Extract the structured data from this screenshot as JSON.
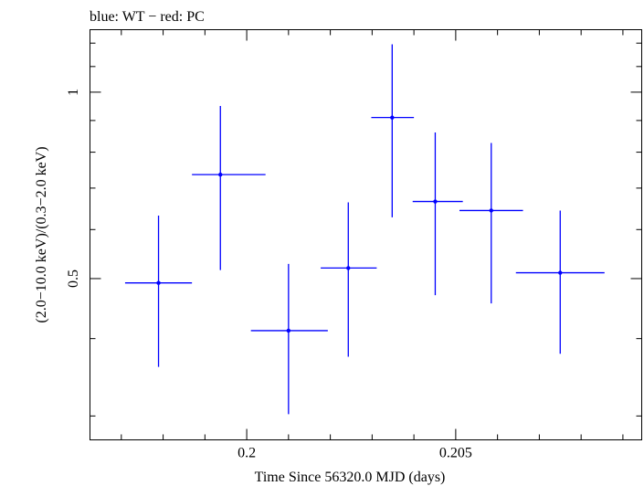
{
  "chart_data": {
    "type": "scatter",
    "title": "blue: WT − red: PC",
    "xlabel": "Time Since 56320.0 MJD (days)",
    "ylabel": "(2.0−10.0 keV)/(0.3−2.0 keV)",
    "xlim": [
      0.19625,
      0.20945
    ],
    "ylim": [
      0.2745,
      1.2615
    ],
    "y_scale": "log",
    "x_ticks": [
      {
        "value": 0.2,
        "label": "0.2"
      },
      {
        "value": 0.205,
        "label": "0.205"
      }
    ],
    "y_ticks": [
      {
        "value": 0.5,
        "label": "0.5"
      },
      {
        "value": 1.0,
        "label": "1"
      }
    ],
    "x_minor_step": 0.001,
    "y_minor_ticks": [
      0.3,
      0.4,
      0.6,
      0.7,
      0.8,
      0.9,
      1.1,
      1.2
    ],
    "grid": false,
    "series": [
      {
        "name": "WT",
        "color": "#0000ff",
        "points": [
          {
            "x": 0.19789,
            "xerr": [
              0.0008,
              0.0008
            ],
            "y": 0.492,
            "yerr": [
              0.132,
              0.14
            ]
          },
          {
            "x": 0.19937,
            "xerr": [
              0.00068,
              0.00108
            ],
            "y": 0.736,
            "yerr": [
              0.22,
              0.214
            ]
          },
          {
            "x": 0.201,
            "xerr": [
              0.0009,
              0.00094
            ],
            "y": 0.412,
            "yerr": [
              0.11,
              0.116
            ]
          },
          {
            "x": 0.20243,
            "xerr": [
              0.00066,
              0.00068
            ],
            "y": 0.52,
            "yerr": [
              0.146,
              0.144
            ]
          },
          {
            "x": 0.20348,
            "xerr": [
              0.0005,
              0.00052
            ],
            "y": 0.91,
            "yerr": [
              0.282,
              0.285
            ]
          },
          {
            "x": 0.20451,
            "xerr": [
              0.00054,
              0.00066
            ],
            "y": 0.666,
            "yerr": [
              0.196,
              0.195
            ]
          },
          {
            "x": 0.20585,
            "xerr": [
              0.00076,
              0.00076
            ],
            "y": 0.644,
            "yerr": [
              0.188,
              0.184
            ]
          },
          {
            "x": 0.2075,
            "xerr": [
              0.00106,
              0.00106
            ],
            "y": 0.511,
            "yerr": [
              0.133,
              0.133
            ]
          }
        ]
      }
    ]
  }
}
